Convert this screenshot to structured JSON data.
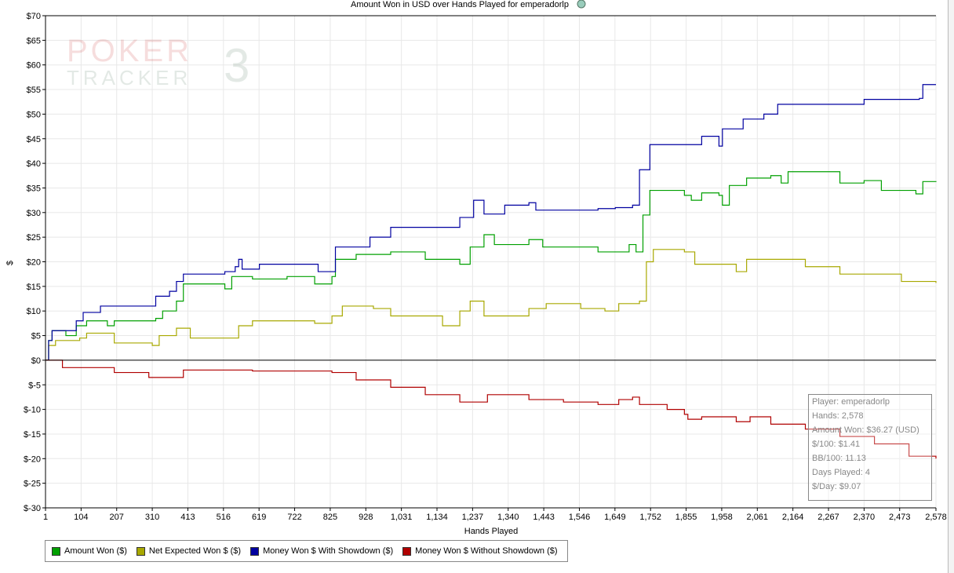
{
  "chart_data": {
    "type": "line",
    "title": "Amount Won in USD over Hands Played for emperadorlp",
    "xlabel": "Hands Played",
    "ylabel": "$",
    "xlim": [
      1,
      2578
    ],
    "ylim": [
      -30,
      70
    ],
    "xticks": [
      "1",
      "104",
      "207",
      "310",
      "413",
      "516",
      "619",
      "722",
      "825",
      "928",
      "1,031",
      "1,134",
      "1,237",
      "1,340",
      "1,443",
      "1,546",
      "1,649",
      "1,752",
      "1,855",
      "1,958",
      "2,061",
      "2,164",
      "2,267",
      "2,370",
      "2,473",
      "2,578"
    ],
    "xtick_values": [
      1,
      104,
      207,
      310,
      413,
      516,
      619,
      722,
      825,
      928,
      1031,
      1134,
      1237,
      1340,
      1443,
      1546,
      1649,
      1752,
      1855,
      1958,
      2061,
      2164,
      2267,
      2370,
      2473,
      2578
    ],
    "yticks": [
      "$70",
      "$65",
      "$60",
      "$55",
      "$50",
      "$45",
      "$40",
      "$35",
      "$30",
      "$25",
      "$20",
      "$15",
      "$10",
      "$5",
      "$0",
      "$-5",
      "$-10",
      "$-15",
      "$-20",
      "$-25",
      "$-30"
    ],
    "ytick_values": [
      70,
      65,
      60,
      55,
      50,
      45,
      40,
      35,
      30,
      25,
      20,
      15,
      10,
      5,
      0,
      -5,
      -10,
      -15,
      -20,
      -25,
      -30
    ],
    "grid": true,
    "legend_position": "bottom",
    "series": [
      {
        "name": "Amount Won ($)",
        "color": "#00a000",
        "points": [
          [
            1,
            0
          ],
          [
            10,
            4
          ],
          [
            20,
            6
          ],
          [
            60,
            5
          ],
          [
            90,
            7
          ],
          [
            120,
            8
          ],
          [
            180,
            7
          ],
          [
            200,
            8
          ],
          [
            320,
            8.5
          ],
          [
            340,
            10
          ],
          [
            380,
            12
          ],
          [
            400,
            15.5
          ],
          [
            500,
            15.5
          ],
          [
            520,
            14.5
          ],
          [
            540,
            17
          ],
          [
            600,
            16.5
          ],
          [
            700,
            17
          ],
          [
            780,
            15.5
          ],
          [
            830,
            17
          ],
          [
            840,
            20.5
          ],
          [
            900,
            21.5
          ],
          [
            1000,
            22
          ],
          [
            1100,
            20.5
          ],
          [
            1200,
            19.5
          ],
          [
            1230,
            23
          ],
          [
            1270,
            25.5
          ],
          [
            1300,
            23.5
          ],
          [
            1400,
            24.5
          ],
          [
            1440,
            23
          ],
          [
            1600,
            22
          ],
          [
            1690,
            23.5
          ],
          [
            1710,
            22
          ],
          [
            1730,
            29.5
          ],
          [
            1750,
            34.5
          ],
          [
            1850,
            33.5
          ],
          [
            1870,
            32.5
          ],
          [
            1900,
            34
          ],
          [
            1950,
            33.5
          ],
          [
            1960,
            31.5
          ],
          [
            1980,
            35.5
          ],
          [
            2030,
            37
          ],
          [
            2100,
            37.5
          ],
          [
            2130,
            36
          ],
          [
            2150,
            38.3
          ],
          [
            2300,
            36
          ],
          [
            2370,
            36.5
          ],
          [
            2420,
            34.5
          ],
          [
            2520,
            33.8
          ],
          [
            2540,
            36.3
          ],
          [
            2578,
            36.2
          ]
        ]
      },
      {
        "name": "Net Expected Won $ ($)",
        "color": "#a8a800",
        "points": [
          [
            1,
            0
          ],
          [
            10,
            3
          ],
          [
            30,
            4
          ],
          [
            100,
            4.5
          ],
          [
            120,
            5.5
          ],
          [
            200,
            3.5
          ],
          [
            310,
            3
          ],
          [
            330,
            5
          ],
          [
            380,
            6.5
          ],
          [
            420,
            4.5
          ],
          [
            520,
            4.5
          ],
          [
            560,
            7
          ],
          [
            600,
            8
          ],
          [
            700,
            8
          ],
          [
            780,
            7.5
          ],
          [
            830,
            9
          ],
          [
            860,
            11
          ],
          [
            950,
            10.5
          ],
          [
            1000,
            9
          ],
          [
            1150,
            7
          ],
          [
            1200,
            10
          ],
          [
            1230,
            12
          ],
          [
            1270,
            9
          ],
          [
            1400,
            10.5
          ],
          [
            1450,
            11.5
          ],
          [
            1550,
            10.5
          ],
          [
            1620,
            10
          ],
          [
            1660,
            11.5
          ],
          [
            1720,
            12
          ],
          [
            1740,
            20
          ],
          [
            1760,
            22.5
          ],
          [
            1850,
            22
          ],
          [
            1880,
            19.5
          ],
          [
            2000,
            18
          ],
          [
            2030,
            20.5
          ],
          [
            2200,
            19
          ],
          [
            2300,
            17.5
          ],
          [
            2400,
            17.5
          ],
          [
            2478,
            16
          ],
          [
            2578,
            15.7
          ]
        ]
      },
      {
        "name": "Money Won $ With Showdown ($)",
        "color": "#0000a0",
        "points": [
          [
            1,
            0
          ],
          [
            10,
            4
          ],
          [
            20,
            6
          ],
          [
            80,
            6
          ],
          [
            90,
            8
          ],
          [
            110,
            9.7
          ],
          [
            150,
            9.7
          ],
          [
            160,
            11
          ],
          [
            310,
            11
          ],
          [
            320,
            13
          ],
          [
            360,
            14
          ],
          [
            380,
            16
          ],
          [
            400,
            17.5
          ],
          [
            500,
            17.5
          ],
          [
            520,
            18
          ],
          [
            550,
            19
          ],
          [
            560,
            20.5
          ],
          [
            570,
            18.5
          ],
          [
            620,
            19.5
          ],
          [
            780,
            19.5
          ],
          [
            790,
            18
          ],
          [
            830,
            18
          ],
          [
            840,
            23
          ],
          [
            940,
            25
          ],
          [
            1000,
            27
          ],
          [
            1200,
            29
          ],
          [
            1240,
            32.5
          ],
          [
            1270,
            29.7
          ],
          [
            1330,
            31.5
          ],
          [
            1400,
            32
          ],
          [
            1420,
            30.5
          ],
          [
            1600,
            30.8
          ],
          [
            1650,
            31
          ],
          [
            1700,
            31.5
          ],
          [
            1720,
            38.7
          ],
          [
            1750,
            43.8
          ],
          [
            1870,
            43.8
          ],
          [
            1900,
            45.5
          ],
          [
            1950,
            43.5
          ],
          [
            1960,
            47
          ],
          [
            2020,
            49
          ],
          [
            2080,
            50
          ],
          [
            2120,
            52
          ],
          [
            2350,
            52
          ],
          [
            2370,
            53
          ],
          [
            2530,
            53.2
          ],
          [
            2540,
            56
          ],
          [
            2578,
            56
          ]
        ]
      },
      {
        "name": "Money Won $ Without Showdown ($)",
        "color": "#b00000",
        "points": [
          [
            1,
            0
          ],
          [
            50,
            -1.5
          ],
          [
            200,
            -2.5
          ],
          [
            300,
            -3.5
          ],
          [
            400,
            -2
          ],
          [
            600,
            -2.2
          ],
          [
            830,
            -2.5
          ],
          [
            900,
            -4
          ],
          [
            1000,
            -5.5
          ],
          [
            1100,
            -7
          ],
          [
            1200,
            -8.5
          ],
          [
            1280,
            -7
          ],
          [
            1400,
            -8
          ],
          [
            1500,
            -8.5
          ],
          [
            1600,
            -9
          ],
          [
            1660,
            -8
          ],
          [
            1700,
            -7.5
          ],
          [
            1720,
            -9
          ],
          [
            1800,
            -10
          ],
          [
            1850,
            -11
          ],
          [
            1860,
            -12
          ],
          [
            1900,
            -11.5
          ],
          [
            2000,
            -12.5
          ],
          [
            2040,
            -11.5
          ],
          [
            2100,
            -13
          ],
          [
            2200,
            -14
          ],
          [
            2300,
            -15.5
          ],
          [
            2400,
            -17
          ],
          [
            2500,
            -19.5
          ],
          [
            2578,
            -20
          ]
        ]
      }
    ]
  },
  "watermark": {
    "line1": "POKER",
    "line2": "TRACKER",
    "num": "3"
  },
  "info": {
    "player": "Player: emperadorlp",
    "hands": "Hands: 2,578",
    "amount_won": "Amount Won: $36.27 (USD)",
    "per100": "$/100: $1.41",
    "bb100": "BB/100: 11.13",
    "days": "Days Played: 4",
    "per_day": "$/Day: $9.07"
  }
}
